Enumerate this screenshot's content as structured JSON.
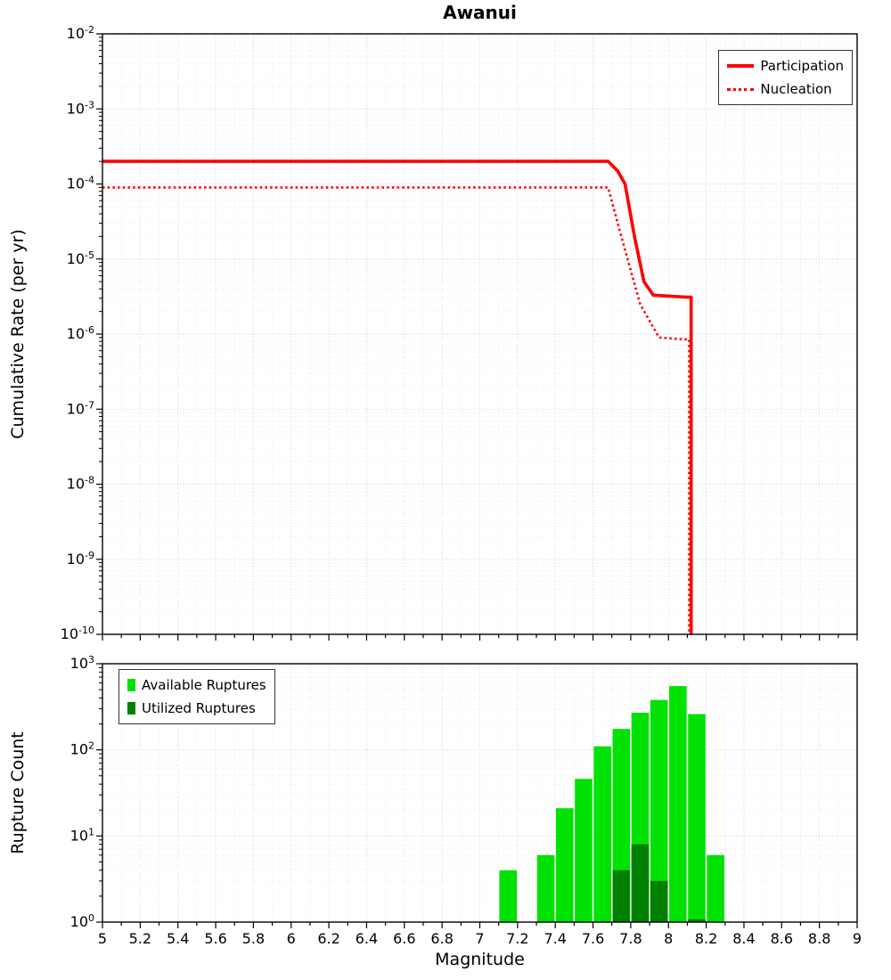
{
  "title": "Awanui",
  "x_axis": {
    "label": "Magnitude",
    "ticks": [
      "5",
      "5.2",
      "5.4",
      "5.6",
      "5.8",
      "6",
      "6.2",
      "6.4",
      "6.6",
      "6.8",
      "7",
      "7.2",
      "7.4",
      "7.6",
      "7.8",
      "8",
      "8.2",
      "8.4",
      "8.6",
      "8.8",
      "9"
    ]
  },
  "chart_data": [
    {
      "type": "line",
      "name": "cumulative-rate-chart",
      "title": "Awanui",
      "xlabel": "",
      "ylabel": "Cumulative Rate (per yr)",
      "x_range": [
        5,
        9
      ],
      "y_range_log10": [
        -10,
        -2
      ],
      "y_tick_exponents": [
        -2,
        -3,
        -4,
        -5,
        -6,
        -7,
        -8,
        -9,
        -10
      ],
      "grid": true,
      "legend_position": "top-right",
      "series": [
        {
          "name": "Participation",
          "style": "solid",
          "color": "#ff0000",
          "points": [
            [
              5,
              0.0002
            ],
            [
              7.68,
              0.0002
            ],
            [
              7.73,
              0.00015
            ],
            [
              7.77,
              0.0001
            ],
            [
              7.82,
              2e-05
            ],
            [
              7.87,
              5e-06
            ],
            [
              7.92,
              3.3e-06
            ],
            [
              8.1,
              3.1e-06
            ],
            [
              8.12,
              3.1e-06
            ],
            [
              8.12,
              1e-10
            ]
          ]
        },
        {
          "name": "Nucleation",
          "style": "dotted",
          "color": "#ff0000",
          "points": [
            [
              5,
              9e-05
            ],
            [
              7.68,
              9e-05
            ],
            [
              7.75,
              2e-05
            ],
            [
              7.85,
              2.5e-06
            ],
            [
              7.95,
              9e-07
            ],
            [
              8.08,
              8.5e-07
            ],
            [
              8.11,
              8.5e-07
            ],
            [
              8.11,
              1e-10
            ]
          ]
        }
      ]
    },
    {
      "type": "bar",
      "name": "rupture-count-chart",
      "xlabel": "Magnitude",
      "ylabel": "Rupture Count",
      "x_range": [
        5,
        9
      ],
      "y_range_log10": [
        0,
        3
      ],
      "y_tick_exponents": [
        3,
        2,
        1,
        0
      ],
      "grid": true,
      "legend_position": "top-left",
      "bar_width": 0.1,
      "categories": [
        7.15,
        7.35,
        7.45,
        7.55,
        7.65,
        7.75,
        7.85,
        7.95,
        8.05,
        8.15,
        8.25
      ],
      "series": [
        {
          "name": "Available Ruptures",
          "color": "#00e104",
          "values": [
            4,
            6,
            21,
            46,
            110,
            175,
            270,
            380,
            550,
            260,
            6
          ]
        },
        {
          "name": "Utilized Ruptures",
          "color": "#008000",
          "values": [
            0,
            0,
            0,
            0,
            0,
            4,
            8,
            3,
            0,
            1,
            0
          ]
        }
      ]
    }
  ]
}
